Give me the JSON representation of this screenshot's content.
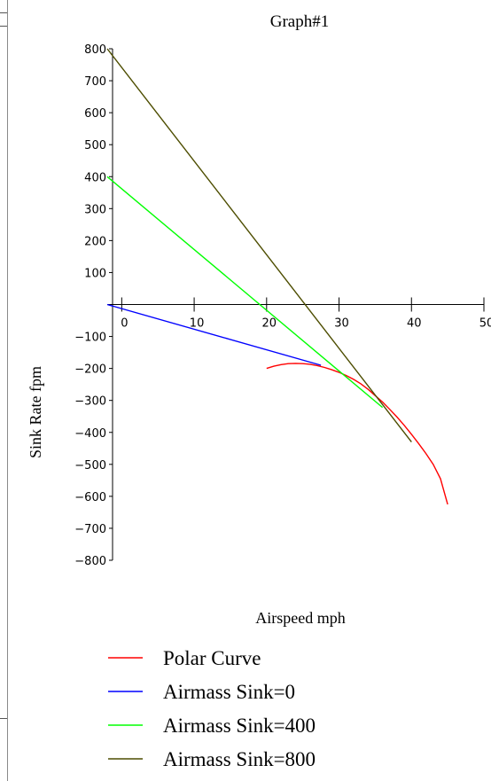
{
  "chart_data": {
    "type": "line",
    "title": "Graph#1",
    "xlabel": "Airspeed mph",
    "ylabel": "Sink Rate fpm",
    "xlim": [
      -2,
      50
    ],
    "ylim": [
      -800,
      800
    ],
    "x_ticks": [
      0,
      10,
      20,
      30,
      40,
      50
    ],
    "y_ticks": [
      -800,
      -700,
      -600,
      -500,
      -400,
      -300,
      -200,
      -100,
      100,
      200,
      300,
      400,
      500,
      600,
      700,
      800
    ],
    "legend_position": "bottom",
    "grid": false,
    "series": [
      {
        "name": "Polar Curve",
        "color": "#ff0000",
        "x": [
          20,
          21,
          22,
          23,
          24,
          25,
          26,
          27,
          28,
          29,
          30,
          31,
          32,
          33,
          34,
          35,
          36,
          37,
          38,
          39,
          40,
          41,
          42,
          43,
          44,
          45
        ],
        "y": [
          -200,
          -193,
          -188,
          -185,
          -184,
          -185,
          -187,
          -191,
          -197,
          -204,
          -212,
          -222,
          -234,
          -248,
          -265,
          -285,
          -305,
          -328,
          -352,
          -378,
          -406,
          -435,
          -466,
          -500,
          -545,
          -625
        ]
      },
      {
        "name": "Airmass Sink=0",
        "color": "#0000ff",
        "x": [
          -2,
          27.5
        ],
        "y": [
          0,
          -190
        ]
      },
      {
        "name": "Airmass Sink=400",
        "color": "#00ff00",
        "x": [
          -2,
          36
        ],
        "y": [
          400,
          -322
        ]
      },
      {
        "name": "Airmass Sink=800",
        "color": "#4d4d00",
        "x": [
          -2,
          40
        ],
        "y": [
          800,
          -430
        ]
      }
    ]
  }
}
